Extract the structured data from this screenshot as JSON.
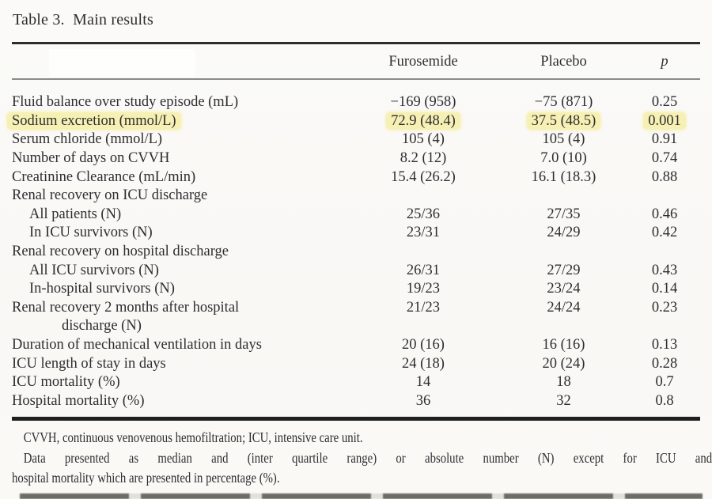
{
  "table": {
    "title": "Table 3.  Main results",
    "columns": {
      "label": "",
      "treatment": "Furosemide",
      "control": "Placebo",
      "p": "p"
    },
    "rows": [
      {
        "label": "Fluid balance over study episode (mL)",
        "indent": 0,
        "furosemide": "−169 (958)",
        "placebo": "−75 (871)",
        "p": "0.25",
        "highlight": false
      },
      {
        "label": "Sodium excretion (mmol/L)",
        "indent": 0,
        "furosemide": "72.9 (48.4)",
        "placebo": "37.5 (48.5)",
        "p": "0.001",
        "highlight": true
      },
      {
        "label": "Serum chloride (mmol/L)",
        "indent": 0,
        "furosemide": "105 (4)",
        "placebo": "105 (4)",
        "p": "0.91",
        "highlight": false
      },
      {
        "label": "Number of days on CVVH",
        "indent": 0,
        "furosemide": "8.2 (12)",
        "placebo": "7.0 (10)",
        "p": "0.74",
        "highlight": false
      },
      {
        "label": "Creatinine Clearance (mL/min)",
        "indent": 0,
        "furosemide": "15.4 (26.2)",
        "placebo": "16.1 (18.3)",
        "p": "0.88",
        "highlight": false
      },
      {
        "label": "Renal recovery on ICU discharge",
        "indent": 0,
        "furosemide": "",
        "placebo": "",
        "p": "",
        "highlight": false
      },
      {
        "label": "All patients (N)",
        "indent": 1,
        "furosemide": "25/36",
        "placebo": "27/35",
        "p": "0.46",
        "highlight": false
      },
      {
        "label": "In ICU survivors (N)",
        "indent": 1,
        "furosemide": "23/31",
        "placebo": "24/29",
        "p": "0.42",
        "highlight": false
      },
      {
        "label": "Renal recovery on hospital discharge",
        "indent": 0,
        "furosemide": "",
        "placebo": "",
        "p": "",
        "highlight": false
      },
      {
        "label": "All ICU survivors (N)",
        "indent": 1,
        "furosemide": "26/31",
        "placebo": "27/29",
        "p": "0.43",
        "highlight": false
      },
      {
        "label": "In-hospital survivors (N)",
        "indent": 1,
        "furosemide": "19/23",
        "placebo": "23/24",
        "p": "0.14",
        "highlight": false
      },
      {
        "label": "Renal recovery 2 months after hospital",
        "indent": 0,
        "furosemide": "21/23",
        "placebo": "24/24",
        "p": "0.23",
        "highlight": false
      },
      {
        "label": "discharge (N)",
        "indent": 2,
        "furosemide": "",
        "placebo": "",
        "p": "",
        "highlight": false
      },
      {
        "label": "Duration of mechanical ventilation in days",
        "indent": 0,
        "furosemide": "20 (16)",
        "placebo": "16 (16)",
        "p": "0.13",
        "highlight": false
      },
      {
        "label": "ICU length of stay in days",
        "indent": 0,
        "furosemide": "24 (18)",
        "placebo": "20 (24)",
        "p": "0.28",
        "highlight": false
      },
      {
        "label": "ICU mortality (%)",
        "indent": 0,
        "furosemide": "14",
        "placebo": "18",
        "p": "0.7",
        "highlight": false
      },
      {
        "label": "Hospital mortality (%)",
        "indent": 0,
        "furosemide": "36",
        "placebo": "32",
        "p": "0.8",
        "highlight": false
      }
    ],
    "footnotes": [
      {
        "text": "CVVH, continuous venovenous hemofiltration; ICU, intensive care unit.",
        "indent": true,
        "justify": false
      },
      {
        "text": "Data presented as median and (inter quartile range) or absolute number (N) except for ICU and",
        "indent": true,
        "justify": true
      },
      {
        "text": "hospital mortality which are presented in percentage (%).",
        "indent": false,
        "justify": false
      }
    ]
  },
  "colors": {
    "highlight": "#f7f0b5",
    "rule_dark": "#2d2d2d",
    "rule_grey": "#8b8b8b",
    "rule_bottom": "#1f1f1f",
    "text": "#2e2d30",
    "background": "#faf9f6"
  }
}
